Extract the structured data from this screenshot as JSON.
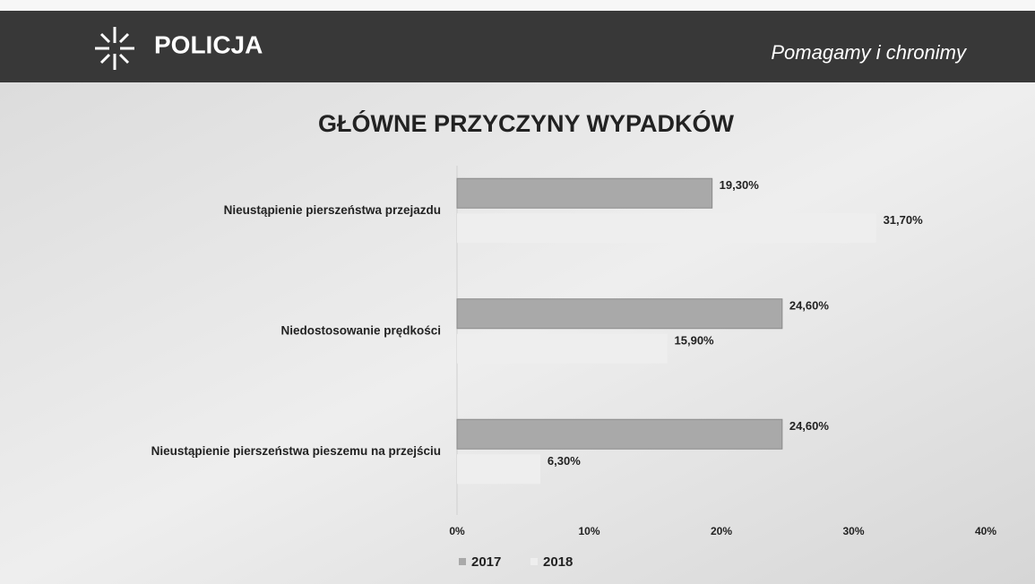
{
  "header": {
    "logo_text": "POLICJA",
    "slogan": "Pomagamy i chronimy"
  },
  "chart_data": {
    "type": "bar",
    "orientation": "horizontal",
    "title": "GŁÓWNE PRZYCZYNY WYPADKÓW",
    "categories": [
      "Nieustąpienie pierszeństwa przejazdu",
      "Niedostosowanie prędkości",
      "Nieustąpienie pierszeństwa pieszemu na przejściu"
    ],
    "series": [
      {
        "name": "2017",
        "color": "#a9a9a9",
        "values": [
          19.3,
          24.6,
          24.6
        ],
        "value_labels": [
          "19,30%",
          "24,60%",
          "24,60%"
        ]
      },
      {
        "name": "2018",
        "color": "#eeeeee",
        "values": [
          31.7,
          15.9,
          6.3
        ],
        "value_labels": [
          "31,70%",
          "15,90%",
          "6,30%"
        ]
      }
    ],
    "xlim": [
      0,
      40
    ],
    "xticks": [
      {
        "value": 0,
        "label": "0%"
      },
      {
        "value": 10,
        "label": "10%"
      },
      {
        "value": 20,
        "label": "20%"
      },
      {
        "value": 30,
        "label": "30%"
      },
      {
        "value": 40,
        "label": "40%"
      }
    ],
    "legend": "bottom"
  }
}
